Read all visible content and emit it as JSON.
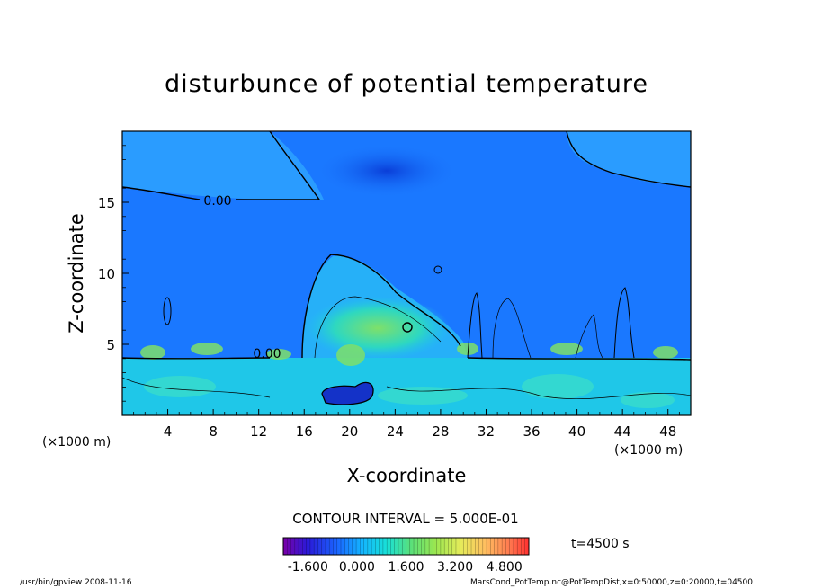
{
  "chart_data": {
    "type": "heatmap",
    "title": "disturbunce of potential temperature",
    "xlabel": "X-coordinate",
    "ylabel": "Z-coordinate",
    "x_unit_left": "(×1000 m)",
    "x_unit_right": "(×1000 m)",
    "xlim": [
      0,
      50
    ],
    "ylim": [
      0,
      20
    ],
    "xticks": [
      4,
      8,
      12,
      16,
      20,
      24,
      28,
      32,
      36,
      40,
      44,
      48
    ],
    "yticks": [
      5,
      10,
      15
    ],
    "contour_label_top": "0.00",
    "contour_label_mid": "0.00",
    "contour_interval_text": "CONTOUR INTERVAL = 5.000E-01",
    "time_text": "t=4500 s",
    "colorbar_ticks": [
      "-1.600",
      "0.000",
      "1.600",
      "3.200",
      "4.800"
    ],
    "colorbar_range": [
      -2.4,
      5.6
    ],
    "colors": {
      "background_field": "#1a78ff",
      "upper_light": "#2a9cff",
      "upper_dark": "#0b50e0",
      "lower_field": "#1fc7e8",
      "warm_green": "#7ee06a",
      "cold_core": "#1432c8"
    }
  },
  "footer": {
    "left": "/usr/bin/gpview   2008-11-16",
    "right": "MarsCond_PotTemp.nc@PotTempDist,x=0:50000,z=0:20000,t=04500"
  }
}
